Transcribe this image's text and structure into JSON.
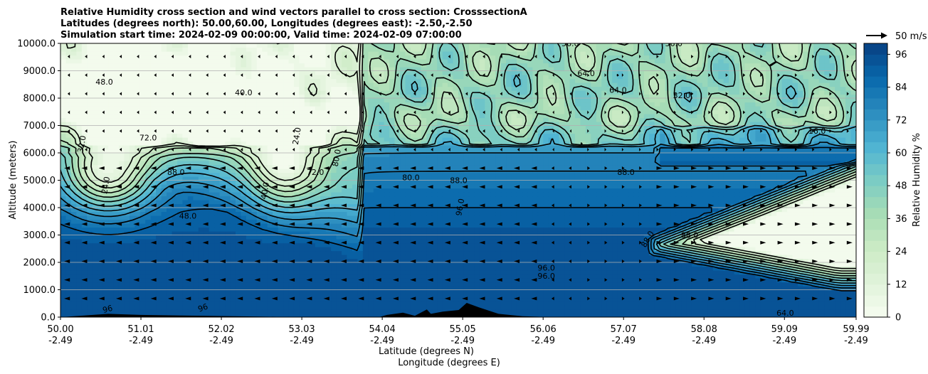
{
  "chart_data": {
    "type": "heatmap",
    "title_lines": [
      "Relative Humidity cross section and wind vectors parallel to cross section: CrosssectionA",
      "Latitudes (degrees north): 50.00,60.00, Longitudes (degrees east): -2.50,-2.50",
      "Simulation start time: 2024-02-09 00:00:00, Valid time: 2024-02-09 07:00:00"
    ],
    "ylabel": "Altitude (meters)",
    "xlabel_lines": [
      "Latitude (degrees N)",
      "Longitude (degrees E)"
    ],
    "y_ticks": [
      0,
      1000,
      2000,
      3000,
      4000,
      5000,
      6000,
      7000,
      8000,
      9000,
      10000
    ],
    "y_tick_labels": [
      "0.0",
      "1000.0",
      "2000.0",
      "3000.0",
      "4000.0",
      "5000.0",
      "6000.0",
      "7000.0",
      "8000.0",
      "9000.0",
      "10000.0"
    ],
    "ylim": [
      0,
      10000
    ],
    "x_ticks": [
      {
        "lat": "50.00",
        "lon": "-2.49"
      },
      {
        "lat": "51.01",
        "lon": "-2.49"
      },
      {
        "lat": "52.02",
        "lon": "-2.49"
      },
      {
        "lat": "53.03",
        "lon": "-2.49"
      },
      {
        "lat": "54.04",
        "lon": "-2.49"
      },
      {
        "lat": "55.05",
        "lon": "-2.49"
      },
      {
        "lat": "56.06",
        "lon": "-2.49"
      },
      {
        "lat": "57.07",
        "lon": "-2.49"
      },
      {
        "lat": "58.08",
        "lon": "-2.49"
      },
      {
        "lat": "59.09",
        "lon": "-2.49"
      },
      {
        "lat": "59.99",
        "lon": "-2.49"
      }
    ],
    "xlim": [
      50.0,
      59.99
    ],
    "colorbar": {
      "label": "Relative Humidity %",
      "ticks": [
        0,
        12,
        24,
        36,
        48,
        60,
        72,
        84,
        96
      ],
      "range": [
        0,
        100
      ],
      "colormap": [
        "#f7fcf0",
        "#e0f3db",
        "#ccebc5",
        "#a8ddb5",
        "#7bccc4",
        "#4eb3d3",
        "#2b8cbe",
        "#0868ac",
        "#084081"
      ]
    },
    "quiver_key": "50 m/s",
    "contour_labels": [
      {
        "text": "24.0",
        "lat": 50.6,
        "alt": 4800,
        "rot": -80
      },
      {
        "text": "32.0",
        "lat": 50.3,
        "alt": 6300,
        "rot": -80
      },
      {
        "text": "48.0",
        "lat": 50.55,
        "alt": 8500,
        "rot": 0
      },
      {
        "text": "72.0",
        "lat": 51.1,
        "alt": 6450,
        "rot": 0
      },
      {
        "text": "88.0",
        "lat": 51.45,
        "alt": 5200,
        "rot": 0
      },
      {
        "text": "48.0",
        "lat": 51.6,
        "alt": 3600,
        "rot": 0
      },
      {
        "text": "40.0",
        "lat": 52.6,
        "alt": 4600,
        "rot": -80
      },
      {
        "text": "72.0",
        "lat": 53.2,
        "alt": 5200,
        "rot": 0
      },
      {
        "text": "80.0",
        "lat": 53.5,
        "alt": 5800,
        "rot": -80
      },
      {
        "text": "88.0",
        "lat": 55.0,
        "alt": 4900,
        "rot": 0
      },
      {
        "text": "80.0",
        "lat": 54.4,
        "alt": 5000,
        "rot": 0
      },
      {
        "text": "96.0",
        "lat": 55.05,
        "alt": 4000,
        "rot": -80
      },
      {
        "text": "88.0",
        "lat": 57.1,
        "alt": 5200,
        "rot": 0
      },
      {
        "text": "96.0",
        "lat": 56.1,
        "alt": 1700,
        "rot": 0
      },
      {
        "text": "96.0",
        "lat": 56.1,
        "alt": 1400,
        "rot": 0
      },
      {
        "text": "64.0",
        "lat": 57.0,
        "alt": 8200,
        "rot": 0
      },
      {
        "text": "32.0",
        "lat": 57.8,
        "alt": 8000,
        "rot": 0
      },
      {
        "text": "16.0",
        "lat": 59.5,
        "alt": 6700,
        "rot": 0
      },
      {
        "text": "88.0",
        "lat": 57.4,
        "alt": 2800,
        "rot": -60
      },
      {
        "text": "88.0",
        "lat": 57.9,
        "alt": 2900,
        "rot": 0
      },
      {
        "text": "96",
        "lat": 50.6,
        "alt": 200,
        "rot": -15
      },
      {
        "text": "96",
        "lat": 51.8,
        "alt": 250,
        "rot": -20
      },
      {
        "text": "64.0",
        "lat": 59.1,
        "alt": 50,
        "rot": 0
      },
      {
        "text": "56.0",
        "lat": 56.4,
        "alt": 9900,
        "rot": 0
      },
      {
        "text": "56.0",
        "lat": 57.7,
        "alt": 9900,
        "rot": 0
      },
      {
        "text": "24.0",
        "lat": 53.0,
        "alt": 6600,
        "rot": -80
      },
      {
        "text": "40.0",
        "lat": 52.3,
        "alt": 8100,
        "rot": 0
      },
      {
        "text": "64.0",
        "lat": 56.6,
        "alt": 8800,
        "rot": 0
      }
    ]
  }
}
